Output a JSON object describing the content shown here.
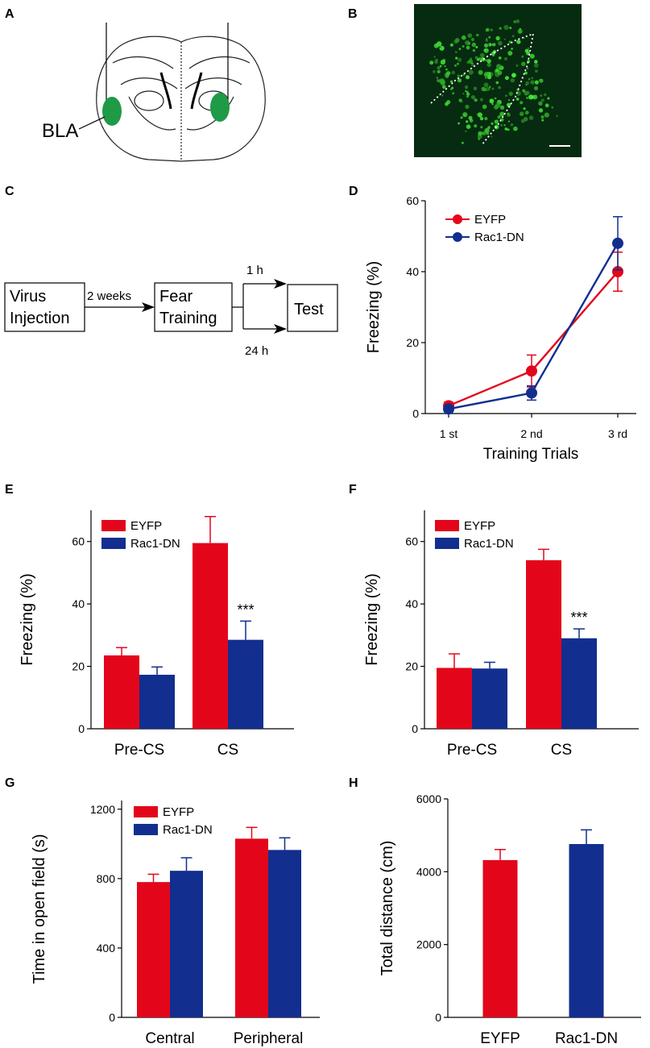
{
  "colors": {
    "eyfp": "#e3061b",
    "rac1dn": "#122e8e",
    "fluor_bg": "#062b10",
    "bla": "#1f9a47"
  },
  "panel_labels": {
    "A": "A",
    "B": "B",
    "C": "C",
    "D": "D",
    "E": "E",
    "F": "F",
    "G": "G",
    "H": "H"
  },
  "panel_a": {
    "region_label": "BLA"
  },
  "panel_c": {
    "box1_line1": "Virus",
    "box1_line2": "Injection",
    "arrow1_label": "2 weeks",
    "box2_line1": "Fear",
    "box2_line2": "Training",
    "branch_top": "1 h",
    "branch_bottom": "24 h",
    "box3": "Test"
  },
  "chart_data": [
    {
      "id": "D",
      "type": "line",
      "categories": [
        "1 st",
        "2 nd",
        "3 rd"
      ],
      "xlabel": "Training Trials",
      "ylabel": "Freezing (%)",
      "ylim": [
        0,
        60
      ],
      "yticks": [
        0,
        20,
        40,
        60
      ],
      "legend_position": "top-left",
      "series": [
        {
          "name": "EYFP",
          "color_key": "eyfp",
          "values": [
            2.2,
            12,
            40
          ],
          "errors": [
            1,
            4.5,
            5.5
          ]
        },
        {
          "name": "Rac1-DN",
          "color_key": "rac1dn",
          "values": [
            1.3,
            5.8,
            48
          ],
          "errors": [
            0.8,
            2,
            7.5
          ]
        }
      ]
    },
    {
      "id": "E",
      "type": "bar",
      "categories": [
        "Pre-CS",
        "CS"
      ],
      "ylabel": "Freezing (%)",
      "ylim": [
        0,
        70
      ],
      "yticks": [
        0,
        20,
        40,
        60
      ],
      "legend_position": "top-left",
      "series": [
        {
          "name": "EYFP",
          "color_key": "eyfp",
          "values": [
            23.5,
            59.5
          ],
          "errors": [
            2.5,
            8.5
          ]
        },
        {
          "name": "Rac1-DN",
          "color_key": "rac1dn",
          "values": [
            17.3,
            28.5
          ],
          "errors": [
            2.5,
            6
          ]
        }
      ],
      "annotations": [
        {
          "text": "***",
          "category": "CS",
          "series": "Rac1-DN"
        }
      ]
    },
    {
      "id": "F",
      "type": "bar",
      "categories": [
        "Pre-CS",
        "CS"
      ],
      "ylabel": "Freezing (%)",
      "ylim": [
        0,
        70
      ],
      "yticks": [
        0,
        20,
        40,
        60
      ],
      "legend_position": "top-left",
      "series": [
        {
          "name": "EYFP",
          "color_key": "eyfp",
          "values": [
            19.5,
            54
          ],
          "errors": [
            4.5,
            3.5
          ]
        },
        {
          "name": "Rac1-DN",
          "color_key": "rac1dn",
          "values": [
            19.3,
            29
          ],
          "errors": [
            2,
            3
          ]
        }
      ],
      "annotations": [
        {
          "text": "***",
          "category": "CS",
          "series": "Rac1-DN"
        }
      ]
    },
    {
      "id": "G",
      "type": "bar",
      "categories": [
        "Central",
        "Peripheral"
      ],
      "ylabel": "Time in open field (s)",
      "ylim": [
        0,
        1250
      ],
      "yticks": [
        0,
        400,
        800,
        1200
      ],
      "legend_position": "top-left",
      "series": [
        {
          "name": "EYFP",
          "color_key": "eyfp",
          "values": [
            780,
            1030
          ],
          "errors": [
            45,
            65
          ]
        },
        {
          "name": "Rac1-DN",
          "color_key": "rac1dn",
          "values": [
            845,
            965
          ],
          "errors": [
            75,
            70
          ]
        }
      ]
    },
    {
      "id": "H",
      "type": "bar",
      "categories": [
        "EYFP",
        "Rac1-DN"
      ],
      "ylabel": "Total distance (cm)",
      "ylim": [
        0,
        6000
      ],
      "yticks": [
        0,
        2000,
        4000,
        6000
      ],
      "single_series": true,
      "series": [
        {
          "name": "Total distance",
          "color_keys": [
            "eyfp",
            "rac1dn"
          ],
          "values": [
            4320,
            4760
          ],
          "errors": [
            290,
            390
          ]
        }
      ]
    }
  ]
}
